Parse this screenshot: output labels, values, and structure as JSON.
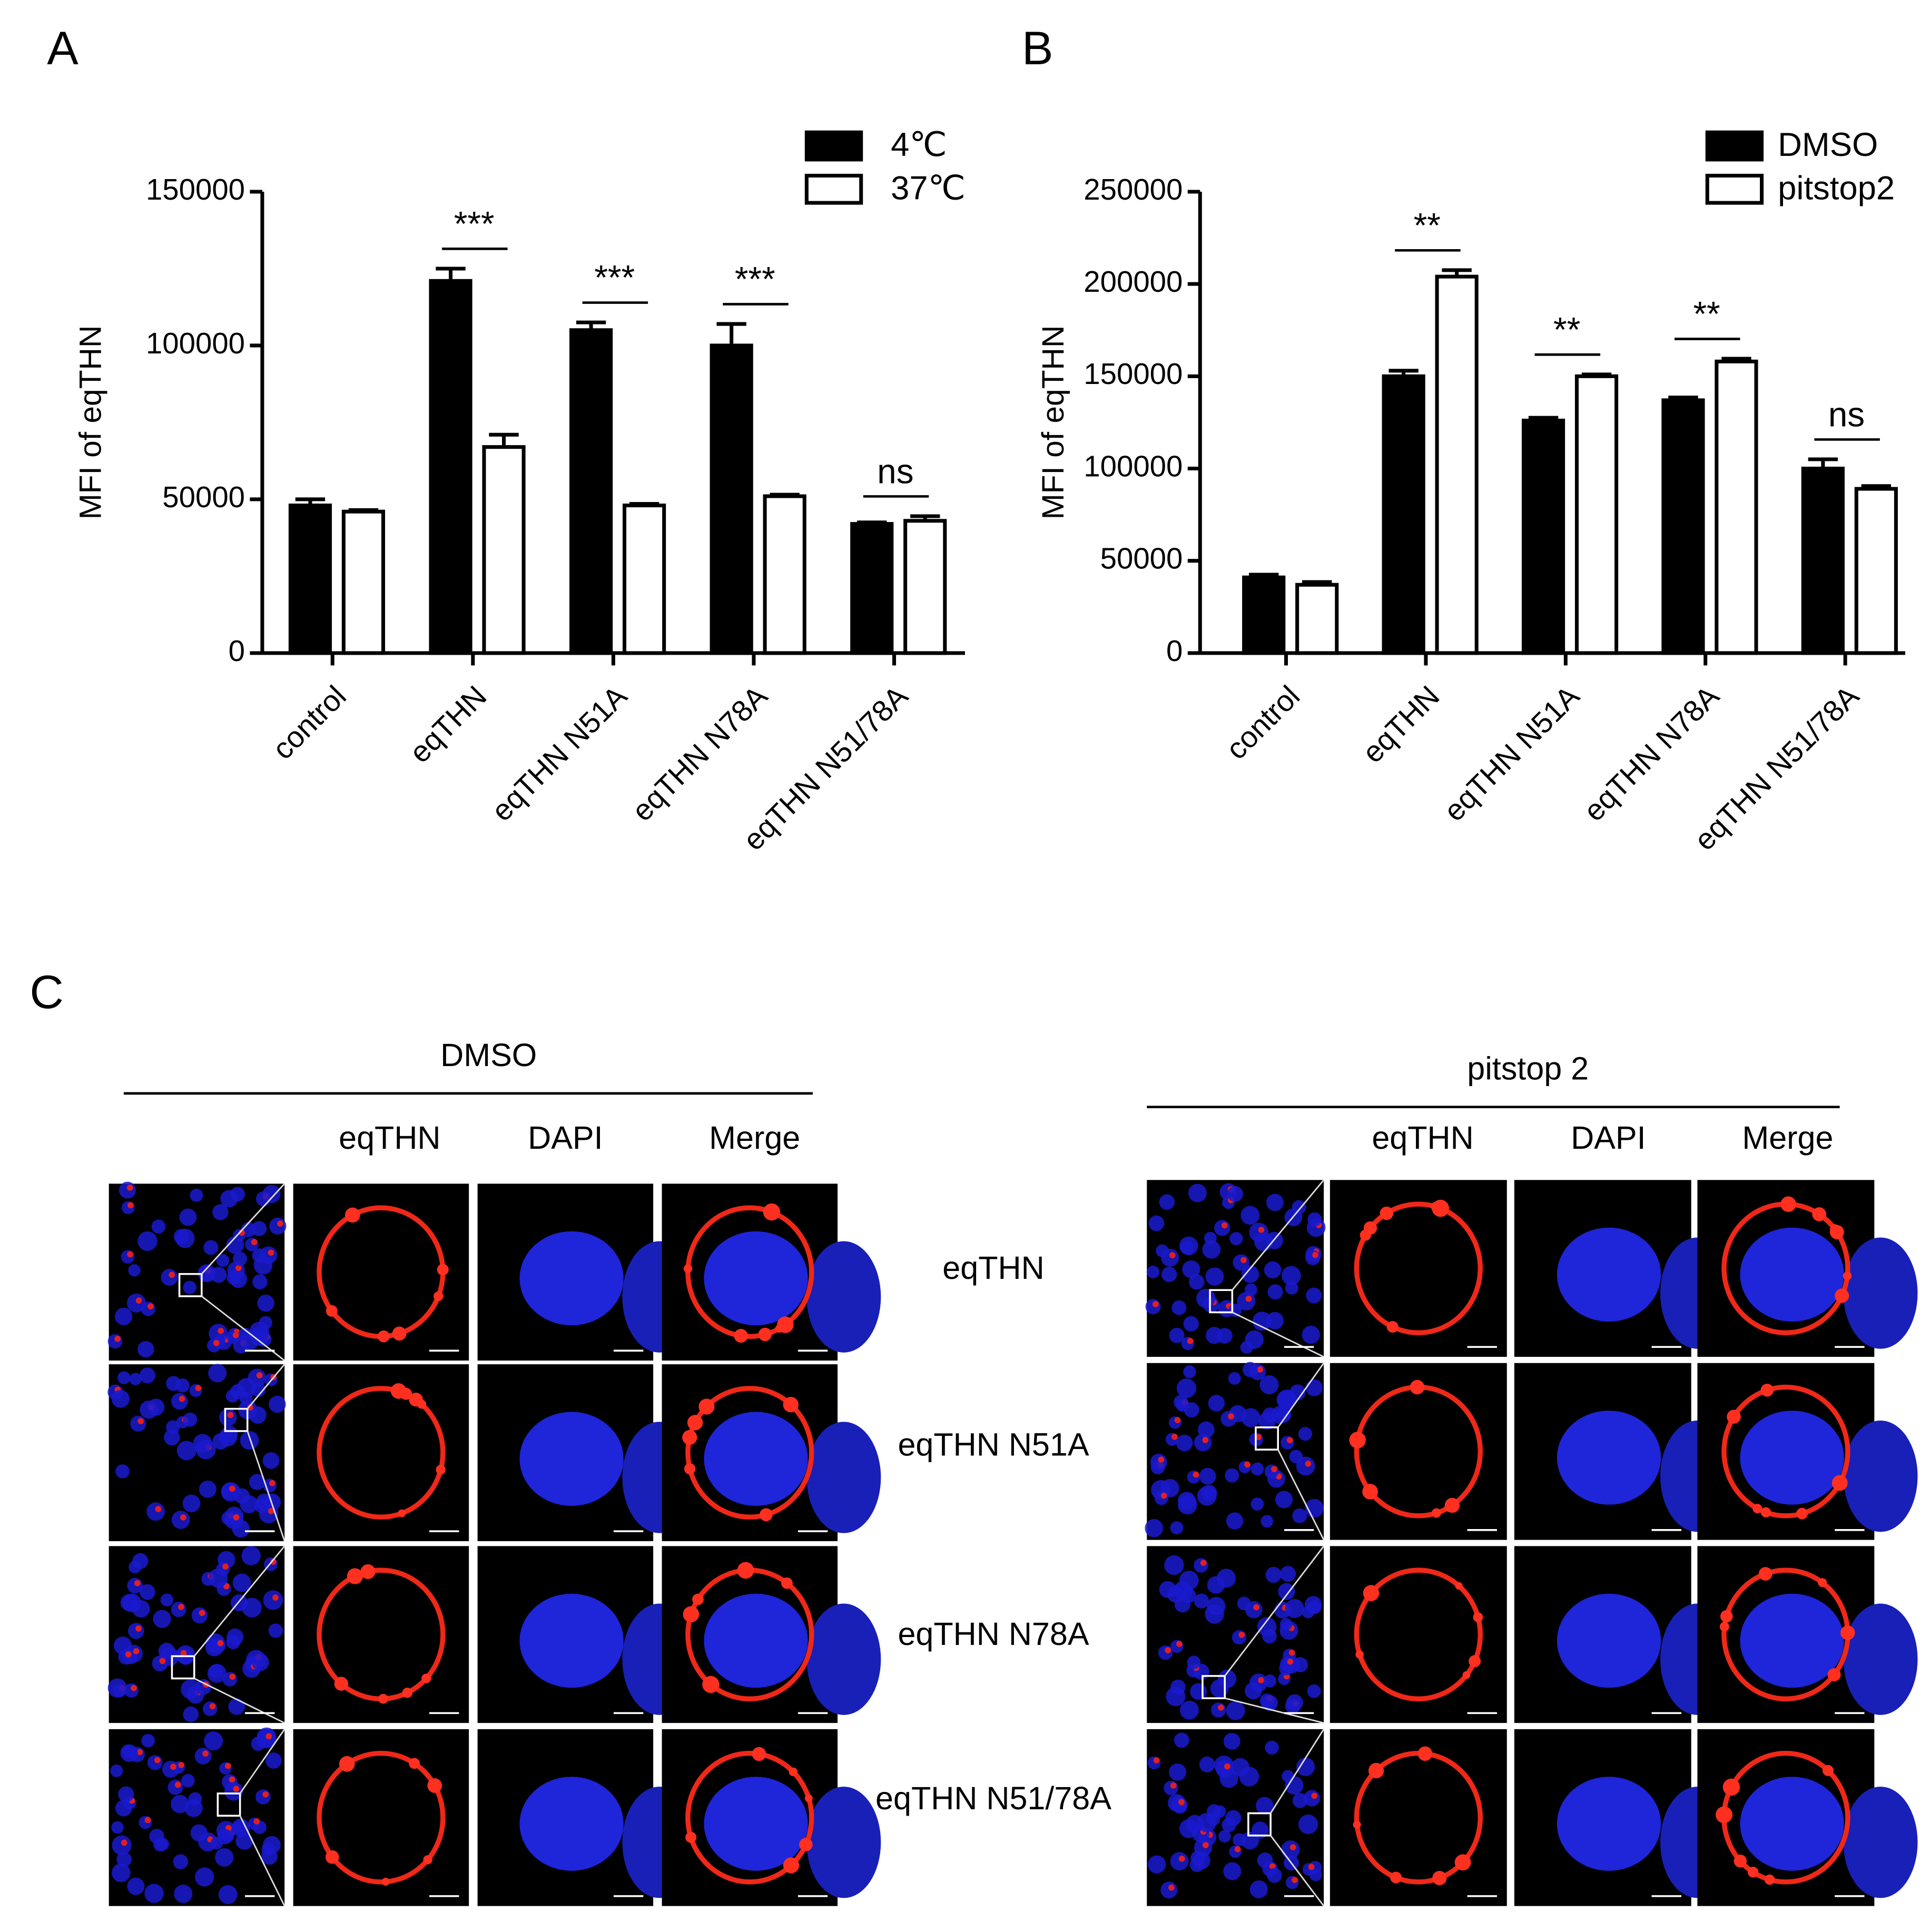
{
  "chart_data": [
    {
      "type": "bar",
      "panel_label": "A",
      "ylabel": "MFI of eqTHN",
      "categories": [
        "control",
        "eqTHN",
        "eqTHN N51A",
        "eqTHN N78A",
        "eqTHN N51/78A"
      ],
      "series": [
        {
          "name": "4℃",
          "color": "#000000",
          "values": [
            48000,
            121000,
            105000,
            100000,
            42000
          ],
          "errors": [
            2000,
            4000,
            2500,
            7000,
            500
          ]
        },
        {
          "name": "37℃",
          "color": "#ffffff",
          "values": [
            46000,
            67000,
            48000,
            51000,
            43000
          ],
          "errors": [
            500,
            4000,
            500,
            500,
            1500
          ]
        }
      ],
      "significance": [
        null,
        "***",
        "***",
        "***",
        "ns"
      ],
      "ylim": [
        0,
        150000
      ],
      "yticks": [
        0,
        50000,
        100000,
        150000
      ],
      "grid": false,
      "legend": "upper right"
    },
    {
      "type": "bar",
      "panel_label": "B",
      "ylabel": "MFI of eqTHN",
      "categories": [
        "control",
        "eqTHN",
        "eqTHN N51A",
        "eqTHN N78A",
        "eqTHN N51/78A"
      ],
      "series": [
        {
          "name": "DMSO",
          "color": "#000000",
          "values": [
            41000,
            150000,
            126000,
            137000,
            100000
          ],
          "errors": [
            1500,
            3000,
            1500,
            1500,
            5000
          ]
        },
        {
          "name": "pitstop2",
          "color": "#ffffff",
          "values": [
            37000,
            204000,
            150000,
            158000,
            89000
          ],
          "errors": [
            1500,
            3500,
            1000,
            1500,
            1500
          ]
        }
      ],
      "significance": [
        null,
        "**",
        "**",
        "**",
        "ns"
      ],
      "ylim": [
        0,
        250000
      ],
      "yticks": [
        0,
        50000,
        100000,
        150000,
        200000,
        250000
      ],
      "grid": false,
      "legend": "upper right"
    }
  ],
  "panel_c": {
    "label": "C",
    "row_labels": [
      "eqTHN",
      "eqTHN N51A",
      "eqTHN N78A",
      "eqTHN N51/78A"
    ],
    "groups": [
      {
        "title": "DMSO",
        "columns": [
          "eqTHN",
          "DAPI",
          "Merge"
        ]
      },
      {
        "title": "pitstop 2",
        "columns": [
          "eqTHN",
          "DAPI",
          "Merge"
        ]
      }
    ]
  }
}
